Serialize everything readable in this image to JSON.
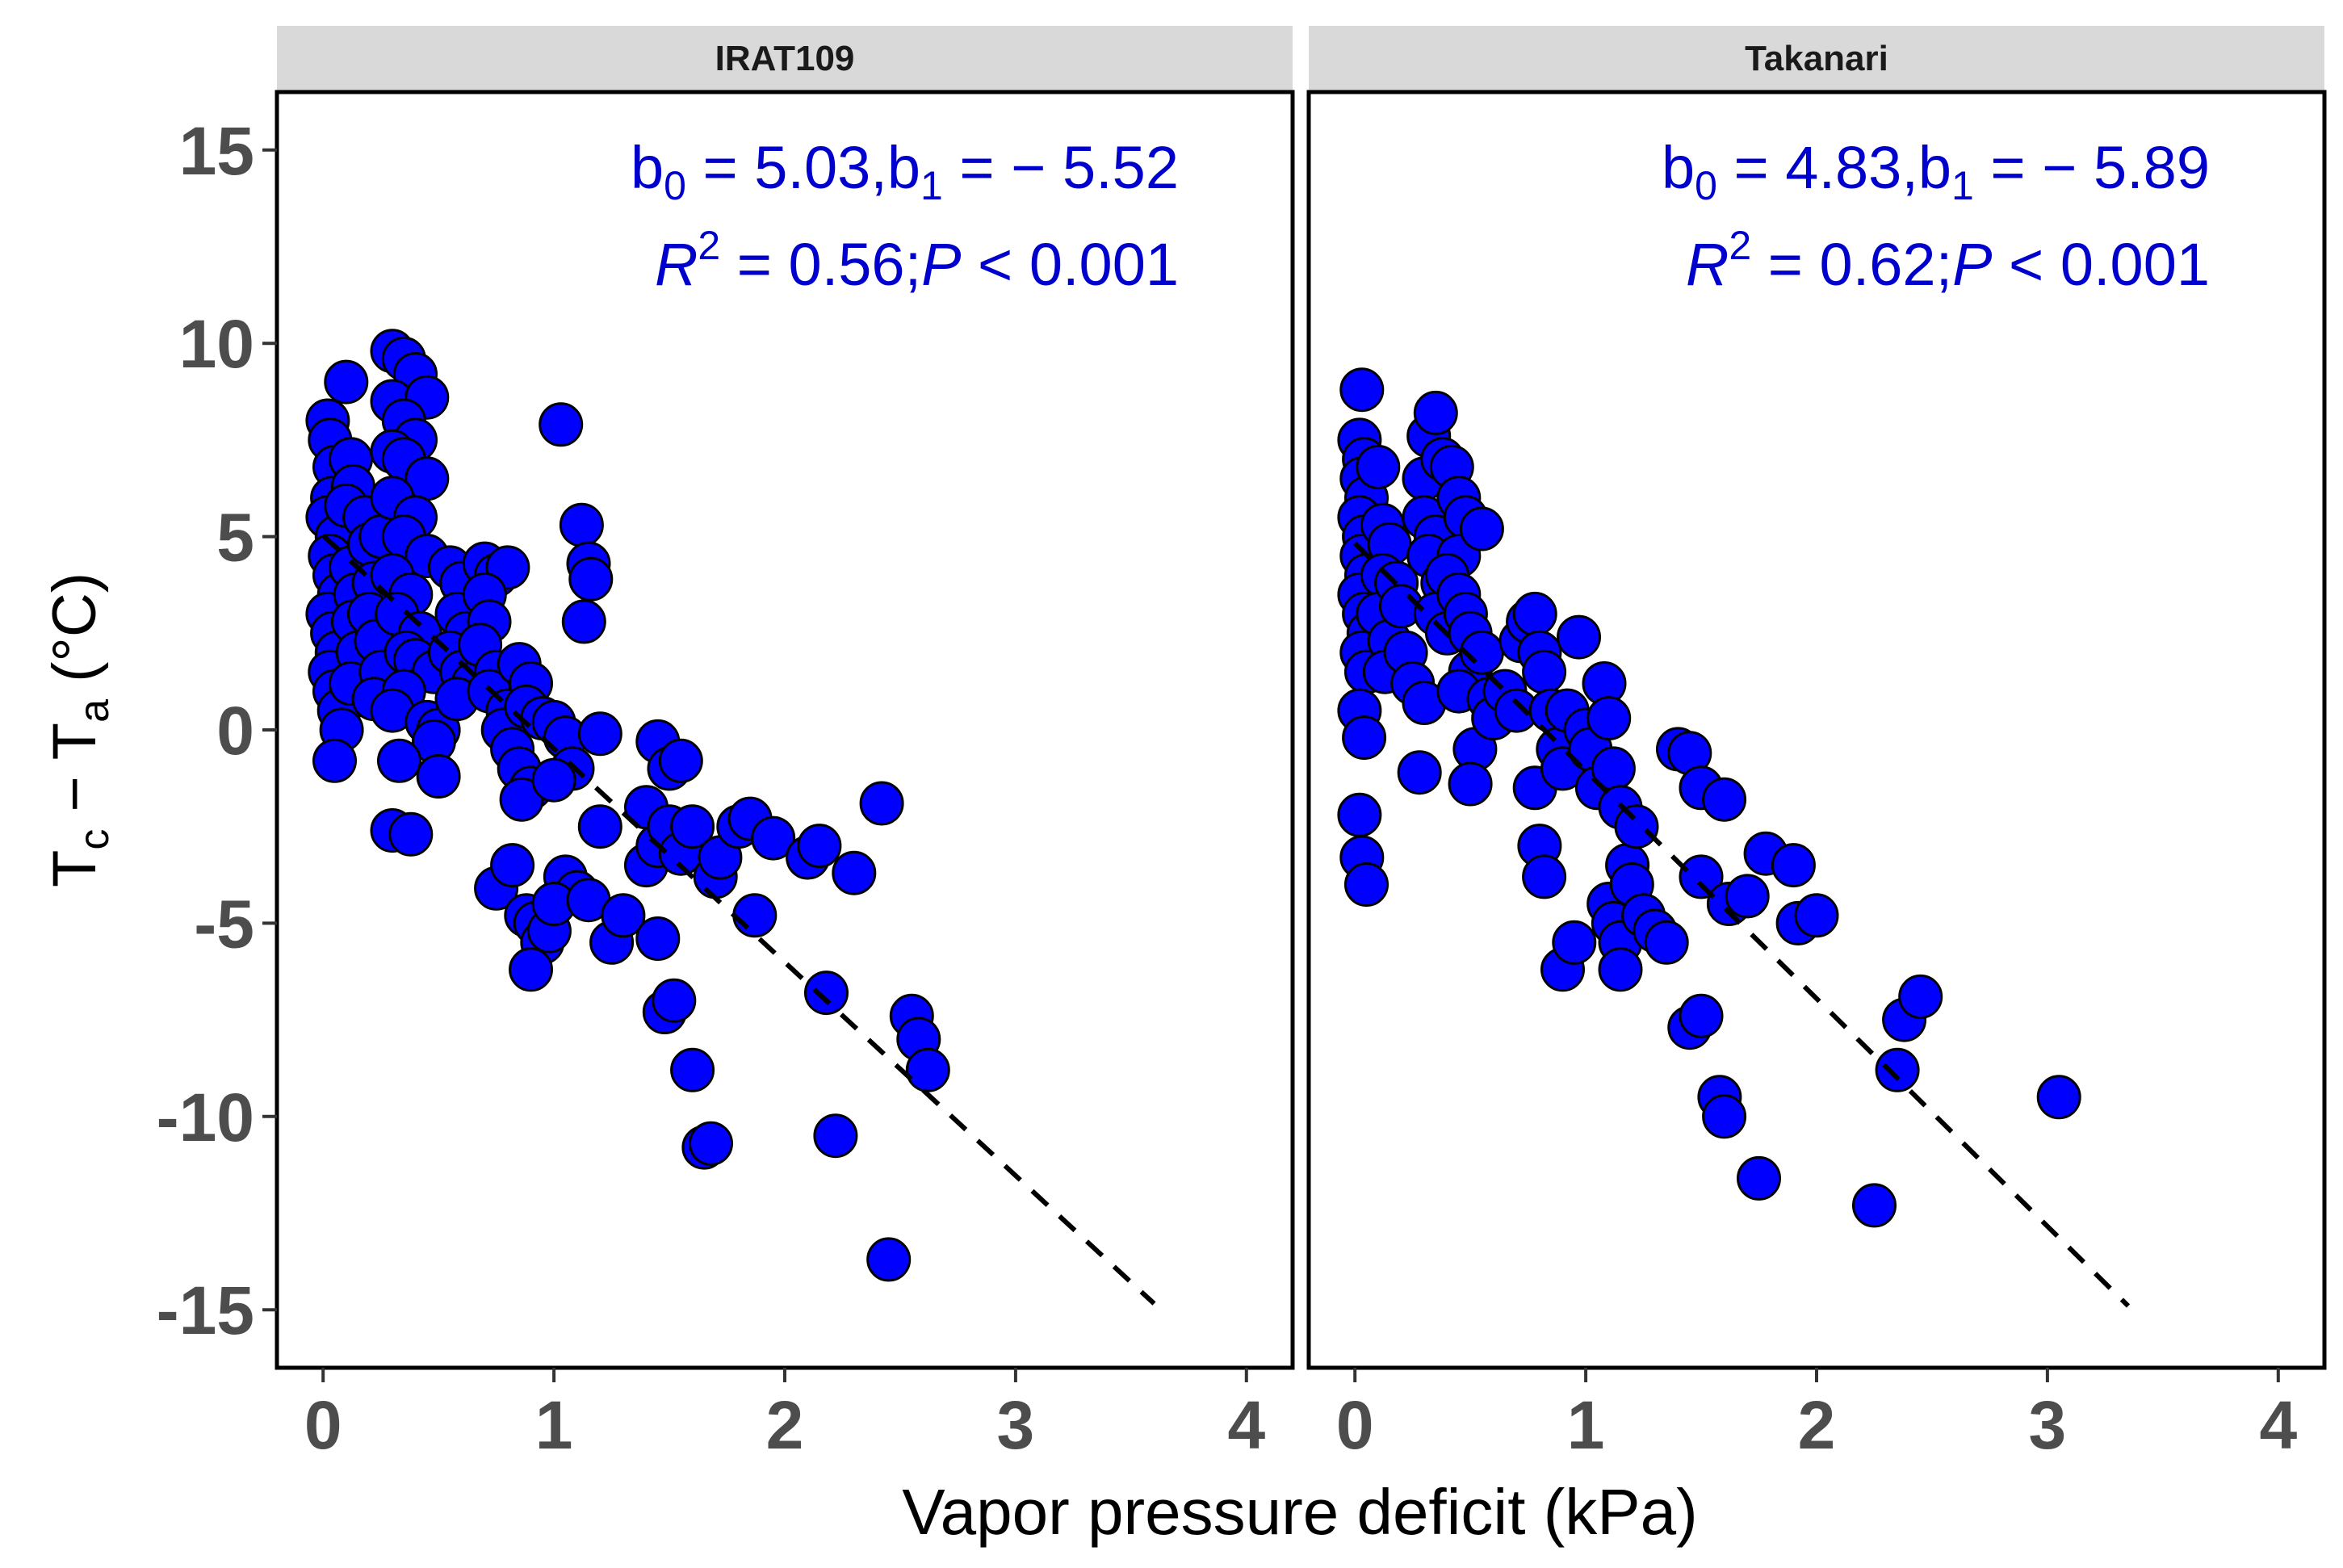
{
  "colors": {
    "points_fill": "#0000ff",
    "points_stroke": "#000000",
    "annotation": "#0000cc",
    "strip_bg": "#d9d9d9",
    "tick_text": "#4d4d4d"
  },
  "x_axis_title": "Vapor pressure deficit (kPa)",
  "y_axis_title": {
    "main": "T",
    "sub1": "c",
    "dash": " − T",
    "sub2": "a",
    "unit": " (°C)"
  },
  "chart_data": [
    {
      "type": "scatter",
      "panel": "IRAT109",
      "xlabel": "Vapor pressure deficit (kPa)",
      "ylabel": "Tc − Ta (°C)",
      "xlim": [
        -0.2,
        4.2
      ],
      "ylim": [
        -16.5,
        16.5
      ],
      "x_ticks": [
        0,
        1,
        2,
        3,
        4
      ],
      "x_tick_labels": [
        "0",
        "1",
        "2",
        "3",
        "4"
      ],
      "y_ticks": [
        15,
        10,
        5,
        0,
        -5,
        -10,
        -15
      ],
      "y_tick_labels": [
        "15",
        "10",
        "5",
        "0",
        "-5",
        "-10",
        "-15"
      ],
      "grid": false,
      "fit": {
        "b0": 5.03,
        "b1": -5.52,
        "x_range": [
          0,
          3.6
        ],
        "style": "dashed"
      },
      "annotation": {
        "b_prefix": "b",
        "b0_sub": "0",
        "b0_text": " = 5.03,b",
        "b1_sub": "1",
        "b1_text": " = − 5.52",
        "r_label": "R",
        "r_sup": "2",
        "r_text": " = 0.56;",
        "p_label": "P",
        "p_text": " < 0.001"
      },
      "points": [
        [
          0.02,
          8.0
        ],
        [
          0.03,
          7.5
        ],
        [
          0.05,
          6.8
        ],
        [
          0.04,
          6.0
        ],
        [
          0.02,
          5.5
        ],
        [
          0.06,
          5.0
        ],
        [
          0.03,
          4.5
        ],
        [
          0.05,
          4.0
        ],
        [
          0.07,
          3.5
        ],
        [
          0.02,
          3.0
        ],
        [
          0.04,
          2.5
        ],
        [
          0.06,
          2.0
        ],
        [
          0.03,
          1.5
        ],
        [
          0.05,
          1.0
        ],
        [
          0.07,
          0.5
        ],
        [
          0.08,
          0.0
        ],
        [
          0.05,
          -0.8
        ],
        [
          0.1,
          9.0
        ],
        [
          0.12,
          7.0
        ],
        [
          0.13,
          6.3
        ],
        [
          0.1,
          5.8
        ],
        [
          0.12,
          4.2
        ],
        [
          0.14,
          3.5
        ],
        [
          0.13,
          2.8
        ],
        [
          0.15,
          2.0
        ],
        [
          0.12,
          1.2
        ],
        [
          0.18,
          5.5
        ],
        [
          0.2,
          4.8
        ],
        [
          0.22,
          3.8
        ],
        [
          0.2,
          3.0
        ],
        [
          0.23,
          2.3
        ],
        [
          0.25,
          1.5
        ],
        [
          0.22,
          0.8
        ],
        [
          0.25,
          5.0
        ],
        [
          0.3,
          9.8
        ],
        [
          0.35,
          9.6
        ],
        [
          0.4,
          9.2
        ],
        [
          0.3,
          8.5
        ],
        [
          0.45,
          8.6
        ],
        [
          0.35,
          8.0
        ],
        [
          0.4,
          7.5
        ],
        [
          0.3,
          7.2
        ],
        [
          0.35,
          7.0
        ],
        [
          0.45,
          6.5
        ],
        [
          0.3,
          6.0
        ],
        [
          0.4,
          5.5
        ],
        [
          0.35,
          5.0
        ],
        [
          0.45,
          4.5
        ],
        [
          0.3,
          4.0
        ],
        [
          0.38,
          3.5
        ],
        [
          0.32,
          3.0
        ],
        [
          0.42,
          2.5
        ],
        [
          0.36,
          2.0
        ],
        [
          0.4,
          1.8
        ],
        [
          0.48,
          1.5
        ],
        [
          0.35,
          1.0
        ],
        [
          0.3,
          0.5
        ],
        [
          0.45,
          0.2
        ],
        [
          0.5,
          0.0
        ],
        [
          0.48,
          -0.3
        ],
        [
          0.33,
          -0.8
        ],
        [
          0.5,
          -1.2
        ],
        [
          0.3,
          -2.6
        ],
        [
          0.38,
          -2.7
        ],
        [
          0.55,
          4.2
        ],
        [
          0.6,
          3.8
        ],
        [
          0.58,
          3.0
        ],
        [
          0.62,
          2.5
        ],
        [
          0.55,
          2.0
        ],
        [
          0.6,
          1.5
        ],
        [
          0.65,
          1.2
        ],
        [
          0.58,
          0.8
        ],
        [
          0.7,
          4.3
        ],
        [
          0.75,
          4.0
        ],
        [
          0.8,
          4.2
        ],
        [
          0.7,
          3.5
        ],
        [
          0.72,
          2.8
        ],
        [
          0.68,
          2.2
        ],
        [
          0.75,
          1.5
        ],
        [
          0.72,
          1.0
        ],
        [
          0.8,
          0.5
        ],
        [
          0.78,
          0.0
        ],
        [
          0.85,
          1.7
        ],
        [
          0.9,
          1.2
        ],
        [
          0.88,
          0.6
        ],
        [
          0.82,
          -0.5
        ],
        [
          0.85,
          -1.0
        ],
        [
          0.9,
          -1.5
        ],
        [
          0.86,
          -1.8
        ],
        [
          0.75,
          -4.1
        ],
        [
          0.82,
          -3.5
        ],
        [
          0.88,
          -4.8
        ],
        [
          0.92,
          -5.0
        ],
        [
          0.95,
          -5.5
        ],
        [
          0.98,
          -5.2
        ],
        [
          0.9,
          -6.2
        ],
        [
          0.95,
          0.3
        ],
        [
          1.0,
          0.2
        ],
        [
          1.03,
          7.9
        ],
        [
          1.05,
          -0.2
        ],
        [
          1.08,
          -1.0
        ],
        [
          1.0,
          -1.3
        ],
        [
          1.05,
          -3.8
        ],
        [
          1.1,
          -4.2
        ],
        [
          1.0,
          -4.5
        ],
        [
          1.12,
          5.3
        ],
        [
          1.15,
          4.3
        ],
        [
          1.16,
          3.9
        ],
        [
          1.13,
          2.8
        ],
        [
          1.2,
          -0.1
        ],
        [
          1.15,
          -4.4
        ],
        [
          1.2,
          -2.5
        ],
        [
          1.25,
          -5.5
        ],
        [
          1.3,
          -4.8
        ],
        [
          1.4,
          -3.5
        ],
        [
          1.45,
          -3.0
        ],
        [
          1.4,
          -2.0
        ],
        [
          1.45,
          -0.3
        ],
        [
          1.5,
          -1.0
        ],
        [
          1.55,
          -0.8
        ],
        [
          1.5,
          -2.5
        ],
        [
          1.55,
          -3.2
        ],
        [
          1.6,
          -2.5
        ],
        [
          1.45,
          -5.4
        ],
        [
          1.48,
          -7.3
        ],
        [
          1.52,
          -7.0
        ],
        [
          1.6,
          -8.8
        ],
        [
          1.65,
          -10.8
        ],
        [
          1.68,
          -10.7
        ],
        [
          1.7,
          -3.8
        ],
        [
          1.72,
          -3.3
        ],
        [
          1.8,
          -2.5
        ],
        [
          1.85,
          -2.3
        ],
        [
          1.87,
          -4.8
        ],
        [
          1.95,
          -2.8
        ],
        [
          2.1,
          -3.3
        ],
        [
          2.15,
          -3.0
        ],
        [
          2.18,
          -6.8
        ],
        [
          2.22,
          -10.5
        ],
        [
          2.3,
          -3.7
        ],
        [
          2.42,
          -1.9
        ],
        [
          2.45,
          -13.7
        ],
        [
          2.55,
          -7.4
        ],
        [
          2.58,
          -8.0
        ],
        [
          2.62,
          -8.8
        ]
      ]
    },
    {
      "type": "scatter",
      "panel": "Takanari",
      "xlabel": "Vapor pressure deficit (kPa)",
      "ylabel": "Tc − Ta (°C)",
      "xlim": [
        -0.2,
        4.2
      ],
      "ylim": [
        -16.5,
        16.5
      ],
      "x_ticks": [
        0,
        1,
        2,
        3,
        4
      ],
      "x_tick_labels": [
        "0",
        "1",
        "2",
        "3",
        "4"
      ],
      "grid": false,
      "fit": {
        "b0": 4.83,
        "b1": -5.89,
        "x_range": [
          0,
          3.35
        ],
        "style": "dashed"
      },
      "annotation": {
        "b_prefix": "b",
        "b0_sub": "0",
        "b0_text": " = 4.83,b",
        "b1_sub": "1",
        "b1_text": " = − 5.89",
        "r_label": "R",
        "r_sup": "2",
        "r_text": " = 0.62;",
        "p_label": "P",
        "p_text": " < 0.001"
      },
      "points": [
        [
          0.03,
          8.8
        ],
        [
          0.02,
          7.5
        ],
        [
          0.04,
          7.0
        ],
        [
          0.03,
          6.5
        ],
        [
          0.05,
          6.0
        ],
        [
          0.02,
          5.5
        ],
        [
          0.04,
          5.0
        ],
        [
          0.03,
          4.5
        ],
        [
          0.05,
          4.0
        ],
        [
          0.02,
          3.5
        ],
        [
          0.04,
          3.0
        ],
        [
          0.06,
          2.5
        ],
        [
          0.03,
          2.0
        ],
        [
          0.05,
          1.5
        ],
        [
          0.02,
          0.5
        ],
        [
          0.04,
          -0.2
        ],
        [
          0.02,
          -2.2
        ],
        [
          0.03,
          -3.3
        ],
        [
          0.05,
          -4.0
        ],
        [
          0.1,
          6.8
        ],
        [
          0.12,
          5.3
        ],
        [
          0.15,
          4.8
        ],
        [
          0.12,
          4.0
        ],
        [
          0.1,
          3.0
        ],
        [
          0.15,
          2.3
        ],
        [
          0.13,
          1.5
        ],
        [
          0.18,
          3.8
        ],
        [
          0.2,
          3.2
        ],
        [
          0.22,
          2.0
        ],
        [
          0.25,
          1.2
        ],
        [
          0.28,
          -1.1
        ],
        [
          0.3,
          6.5
        ],
        [
          0.32,
          7.6
        ],
        [
          0.35,
          8.2
        ],
        [
          0.38,
          7.0
        ],
        [
          0.3,
          5.5
        ],
        [
          0.35,
          5.0
        ],
        [
          0.32,
          4.5
        ],
        [
          0.38,
          3.8
        ],
        [
          0.35,
          3.0
        ],
        [
          0.4,
          2.5
        ],
        [
          0.3,
          0.7
        ],
        [
          0.42,
          6.8
        ],
        [
          0.45,
          6.0
        ],
        [
          0.48,
          5.5
        ],
        [
          0.45,
          4.5
        ],
        [
          0.4,
          4.0
        ],
        [
          0.45,
          3.5
        ],
        [
          0.48,
          3.0
        ],
        [
          0.5,
          2.5
        ],
        [
          0.5,
          1.5
        ],
        [
          0.45,
          1.0
        ],
        [
          0.52,
          -0.5
        ],
        [
          0.5,
          -1.4
        ],
        [
          0.55,
          5.2
        ],
        [
          0.55,
          2.0
        ],
        [
          0.58,
          0.8
        ],
        [
          0.6,
          0.3
        ],
        [
          0.65,
          1.0
        ],
        [
          0.7,
          0.5
        ],
        [
          0.72,
          2.3
        ],
        [
          0.75,
          2.8
        ],
        [
          0.78,
          3.0
        ],
        [
          0.8,
          2.0
        ],
        [
          0.82,
          1.5
        ],
        [
          0.78,
          -1.5
        ],
        [
          0.8,
          -3.0
        ],
        [
          0.82,
          -3.8
        ],
        [
          0.85,
          0.5
        ],
        [
          0.88,
          -0.5
        ],
        [
          0.9,
          -1.0
        ],
        [
          0.92,
          0.5
        ],
        [
          0.9,
          -6.2
        ],
        [
          0.95,
          -5.5
        ],
        [
          0.97,
          2.4
        ],
        [
          1.0,
          0.0
        ],
        [
          1.02,
          -0.5
        ],
        [
          1.05,
          -1.5
        ],
        [
          1.08,
          1.2
        ],
        [
          1.1,
          0.3
        ],
        [
          1.12,
          -1.0
        ],
        [
          1.15,
          -2.0
        ],
        [
          1.1,
          -4.5
        ],
        [
          1.12,
          -5.0
        ],
        [
          1.15,
          -5.5
        ],
        [
          1.18,
          -3.5
        ],
        [
          1.2,
          -4.0
        ],
        [
          1.15,
          -6.2
        ],
        [
          1.22,
          -2.5
        ],
        [
          1.25,
          -4.8
        ],
        [
          1.3,
          -5.2
        ],
        [
          1.35,
          -5.5
        ],
        [
          1.4,
          -0.5
        ],
        [
          1.45,
          -0.6
        ],
        [
          1.5,
          -1.5
        ],
        [
          1.5,
          -3.8
        ],
        [
          1.45,
          -7.7
        ],
        [
          1.5,
          -7.4
        ],
        [
          1.58,
          -9.5
        ],
        [
          1.6,
          -10.0
        ],
        [
          1.6,
          -1.8
        ],
        [
          1.62,
          -4.5
        ],
        [
          1.7,
          -4.3
        ],
        [
          1.75,
          -11.6
        ],
        [
          1.78,
          -3.2
        ],
        [
          1.9,
          -3.5
        ],
        [
          1.92,
          -5.0
        ],
        [
          2.0,
          -4.8
        ],
        [
          2.25,
          -12.3
        ],
        [
          2.35,
          -8.8
        ],
        [
          2.38,
          -7.5
        ],
        [
          2.45,
          -6.9
        ],
        [
          3.05,
          -9.5
        ]
      ]
    }
  ]
}
